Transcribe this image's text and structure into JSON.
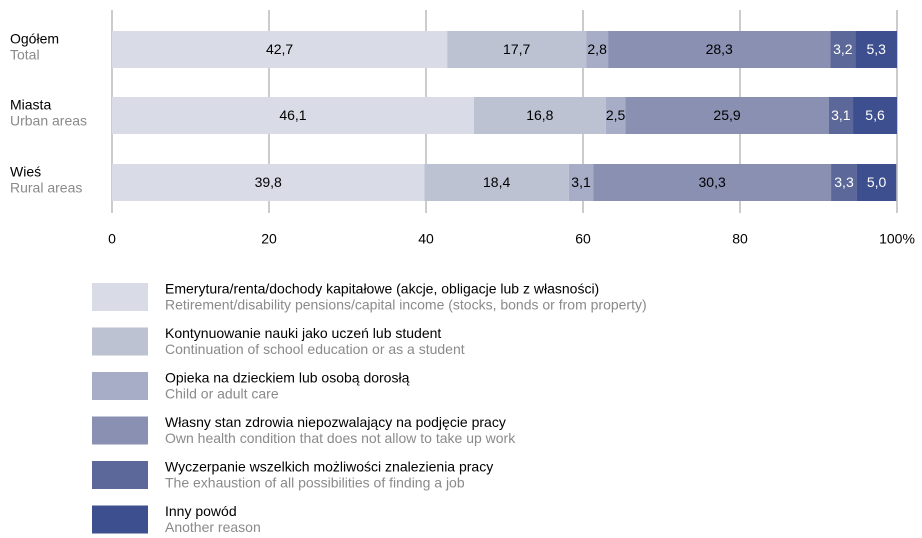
{
  "chart_data": {
    "type": "stacked_barh",
    "categories": [
      "Ogółem",
      "Miasta",
      "Wieś"
    ],
    "category_subtitles": [
      "Total",
      "Urban areas",
      "Rural areas"
    ],
    "xlim": [
      0,
      100
    ],
    "xticks": [
      0,
      20,
      40,
      60,
      80,
      {
        "value": 100,
        "label": "100%"
      }
    ],
    "grid": true,
    "legend": "bottom",
    "series": [
      {
        "name": "Emerytura/renta/dochody kapitałowe (akcje, obligacje lub z własności)",
        "name_en": "Retirement/disability pensions/capital income (stocks, bonds or from property)",
        "color": "#d9dce6",
        "label_color": "#000000",
        "values": [
          42.7,
          46.1,
          39.8
        ],
        "value_labels": [
          "42,7",
          "46,1",
          "39,8"
        ]
      },
      {
        "name": "Kontynuowanie nauki jako uczeń lub student",
        "name_en": "Continuation of school education or as a student",
        "color": "#bcc2d2",
        "label_color": "#000000",
        "values": [
          17.7,
          16.8,
          18.4
        ],
        "value_labels": [
          "17,7",
          "16,8",
          "18,4"
        ]
      },
      {
        "name": "Opieka na dzieckiem lub osobą dorosłą",
        "name_en": "Child or adult care",
        "color": "#a7adc6",
        "label_color": "#000000",
        "values": [
          2.8,
          2.5,
          3.1
        ],
        "value_labels": [
          "2,8",
          "2,5",
          "3,1"
        ]
      },
      {
        "name": "Własny stan zdrowia niepozwalający na podjęcie pracy",
        "name_en": "Own health condition that does not allow to take up work",
        "color": "#8990b2",
        "label_color": "#000000",
        "values": [
          28.3,
          25.9,
          30.3
        ],
        "value_labels": [
          "28,3",
          "25,9",
          "30,3"
        ]
      },
      {
        "name": "Wyczerpanie wszelkich możliwości znalezienia pracy",
        "name_en": "The exhaustion of all possibilities of finding a job",
        "color": "#5c6899",
        "label_color": "#ffffff",
        "values": [
          3.2,
          3.1,
          3.3
        ],
        "value_labels": [
          "3,2",
          "3,1",
          "3,3"
        ]
      },
      {
        "name": "Inny powód",
        "name_en": "Another reason",
        "color": "#3d4f8e",
        "label_color": "#ffffff",
        "values": [
          5.3,
          5.6,
          5.0
        ],
        "value_labels": [
          "5,3",
          "5,6",
          "5,0"
        ]
      }
    ]
  }
}
